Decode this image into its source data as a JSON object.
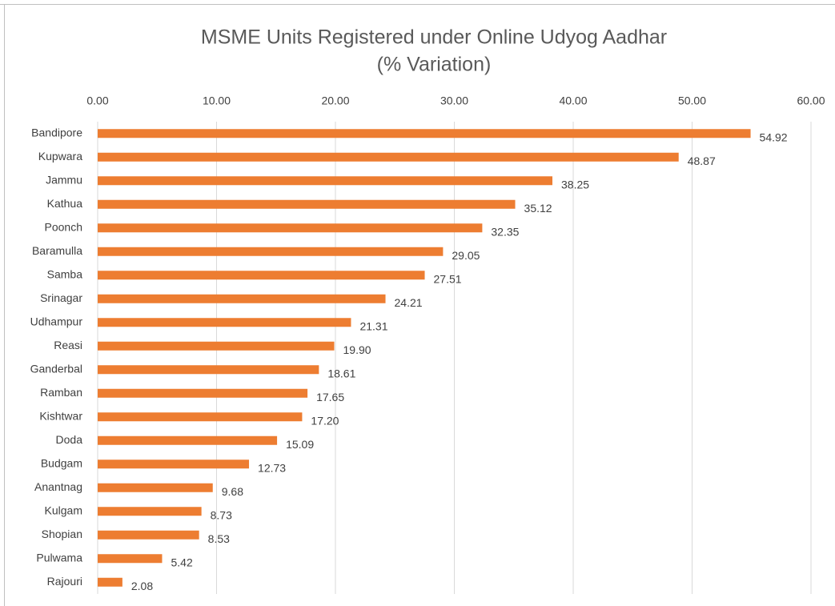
{
  "chart_data": {
    "type": "bar",
    "orientation": "horizontal",
    "title": "MSME Units Registered under Online Udyog Aadhar",
    "subtitle": "(% Variation)",
    "categories": [
      "Bandipore",
      "Kupwara",
      "Jammu",
      "Kathua",
      "Poonch",
      "Baramulla",
      "Samba",
      "Srinagar",
      "Udhampur",
      "Reasi",
      "Ganderbal",
      "Ramban",
      "Kishtwar",
      "Doda",
      "Budgam",
      "Anantnag",
      "Kulgam",
      "Shopian",
      "Pulwama",
      "Rajouri"
    ],
    "values": [
      54.92,
      48.87,
      38.25,
      35.12,
      32.35,
      29.05,
      27.51,
      24.21,
      21.31,
      19.9,
      18.61,
      17.65,
      17.2,
      15.09,
      12.73,
      9.68,
      8.73,
      8.53,
      5.42,
      2.08
    ],
    "value_labels": [
      "54.92",
      "48.87",
      "38.25",
      "35.12",
      "32.35",
      "29.05",
      "27.51",
      "24.21",
      "21.31",
      "19.90",
      "18.61",
      "17.65",
      "17.20",
      "15.09",
      "12.73",
      "9.68",
      "8.73",
      "8.53",
      "5.42",
      "2.08"
    ],
    "color": "#ed7d31",
    "xlim": [
      0,
      60
    ],
    "xticks": [
      {
        "value": 0,
        "label": "0.00"
      },
      {
        "value": 10,
        "label": "10.00"
      },
      {
        "value": 20,
        "label": "20.00"
      },
      {
        "value": 30,
        "label": "30.00"
      },
      {
        "value": 40,
        "label": "40.00"
      },
      {
        "value": 50,
        "label": "50.00"
      },
      {
        "value": 60,
        "label": "60.00"
      }
    ],
    "grid": true
  }
}
